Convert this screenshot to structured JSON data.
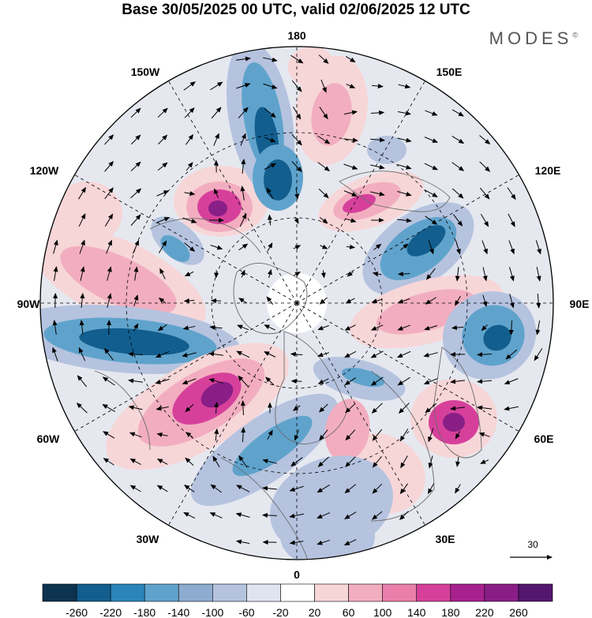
{
  "title": "Base 30/05/2025 00 UTC, valid 02/06/2025 12 UTC",
  "brand": "MODES",
  "brand_mark": "©",
  "longitude_labels": {
    "top": "180",
    "bottom": "0",
    "left": "90W",
    "right": "90E",
    "upper_left_near": "150W",
    "upper_left_far": "120W",
    "upper_right_near": "150E",
    "upper_right_far": "120E",
    "lower_left_far": "60W",
    "lower_left_near": "30W",
    "lower_right_far": "60E",
    "lower_right_near": "30E"
  },
  "reference_vector": {
    "value": "30",
    "icon": "arrow-right-icon"
  },
  "colorbar": {
    "ticks": [
      "-260",
      "-220",
      "-180",
      "-140",
      "-100",
      "-60",
      "-20",
      "20",
      "60",
      "100",
      "140",
      "180",
      "220",
      "260"
    ],
    "colors": [
      "#0d3350",
      "#125e8e",
      "#2c84bb",
      "#5fa3cc",
      "#8dacd0",
      "#b5c3df",
      "#dfe4ef",
      "#ffffff",
      "#f7d6d8",
      "#f2aec0",
      "#ea7fac",
      "#d6409b",
      "#a7218f",
      "#891e87",
      "#53176f"
    ]
  },
  "anomaly_colors": {
    "neg_strong": "#125e8e",
    "neg_mid": "#5fa3cc",
    "neg_weak": "#b5c3df",
    "neutral": "#dfe4ef",
    "pos_weak": "#f7d6d8",
    "pos_mid": "#f2aec0",
    "pos_strong": "#d6409b",
    "pos_max": "#891e87"
  }
}
